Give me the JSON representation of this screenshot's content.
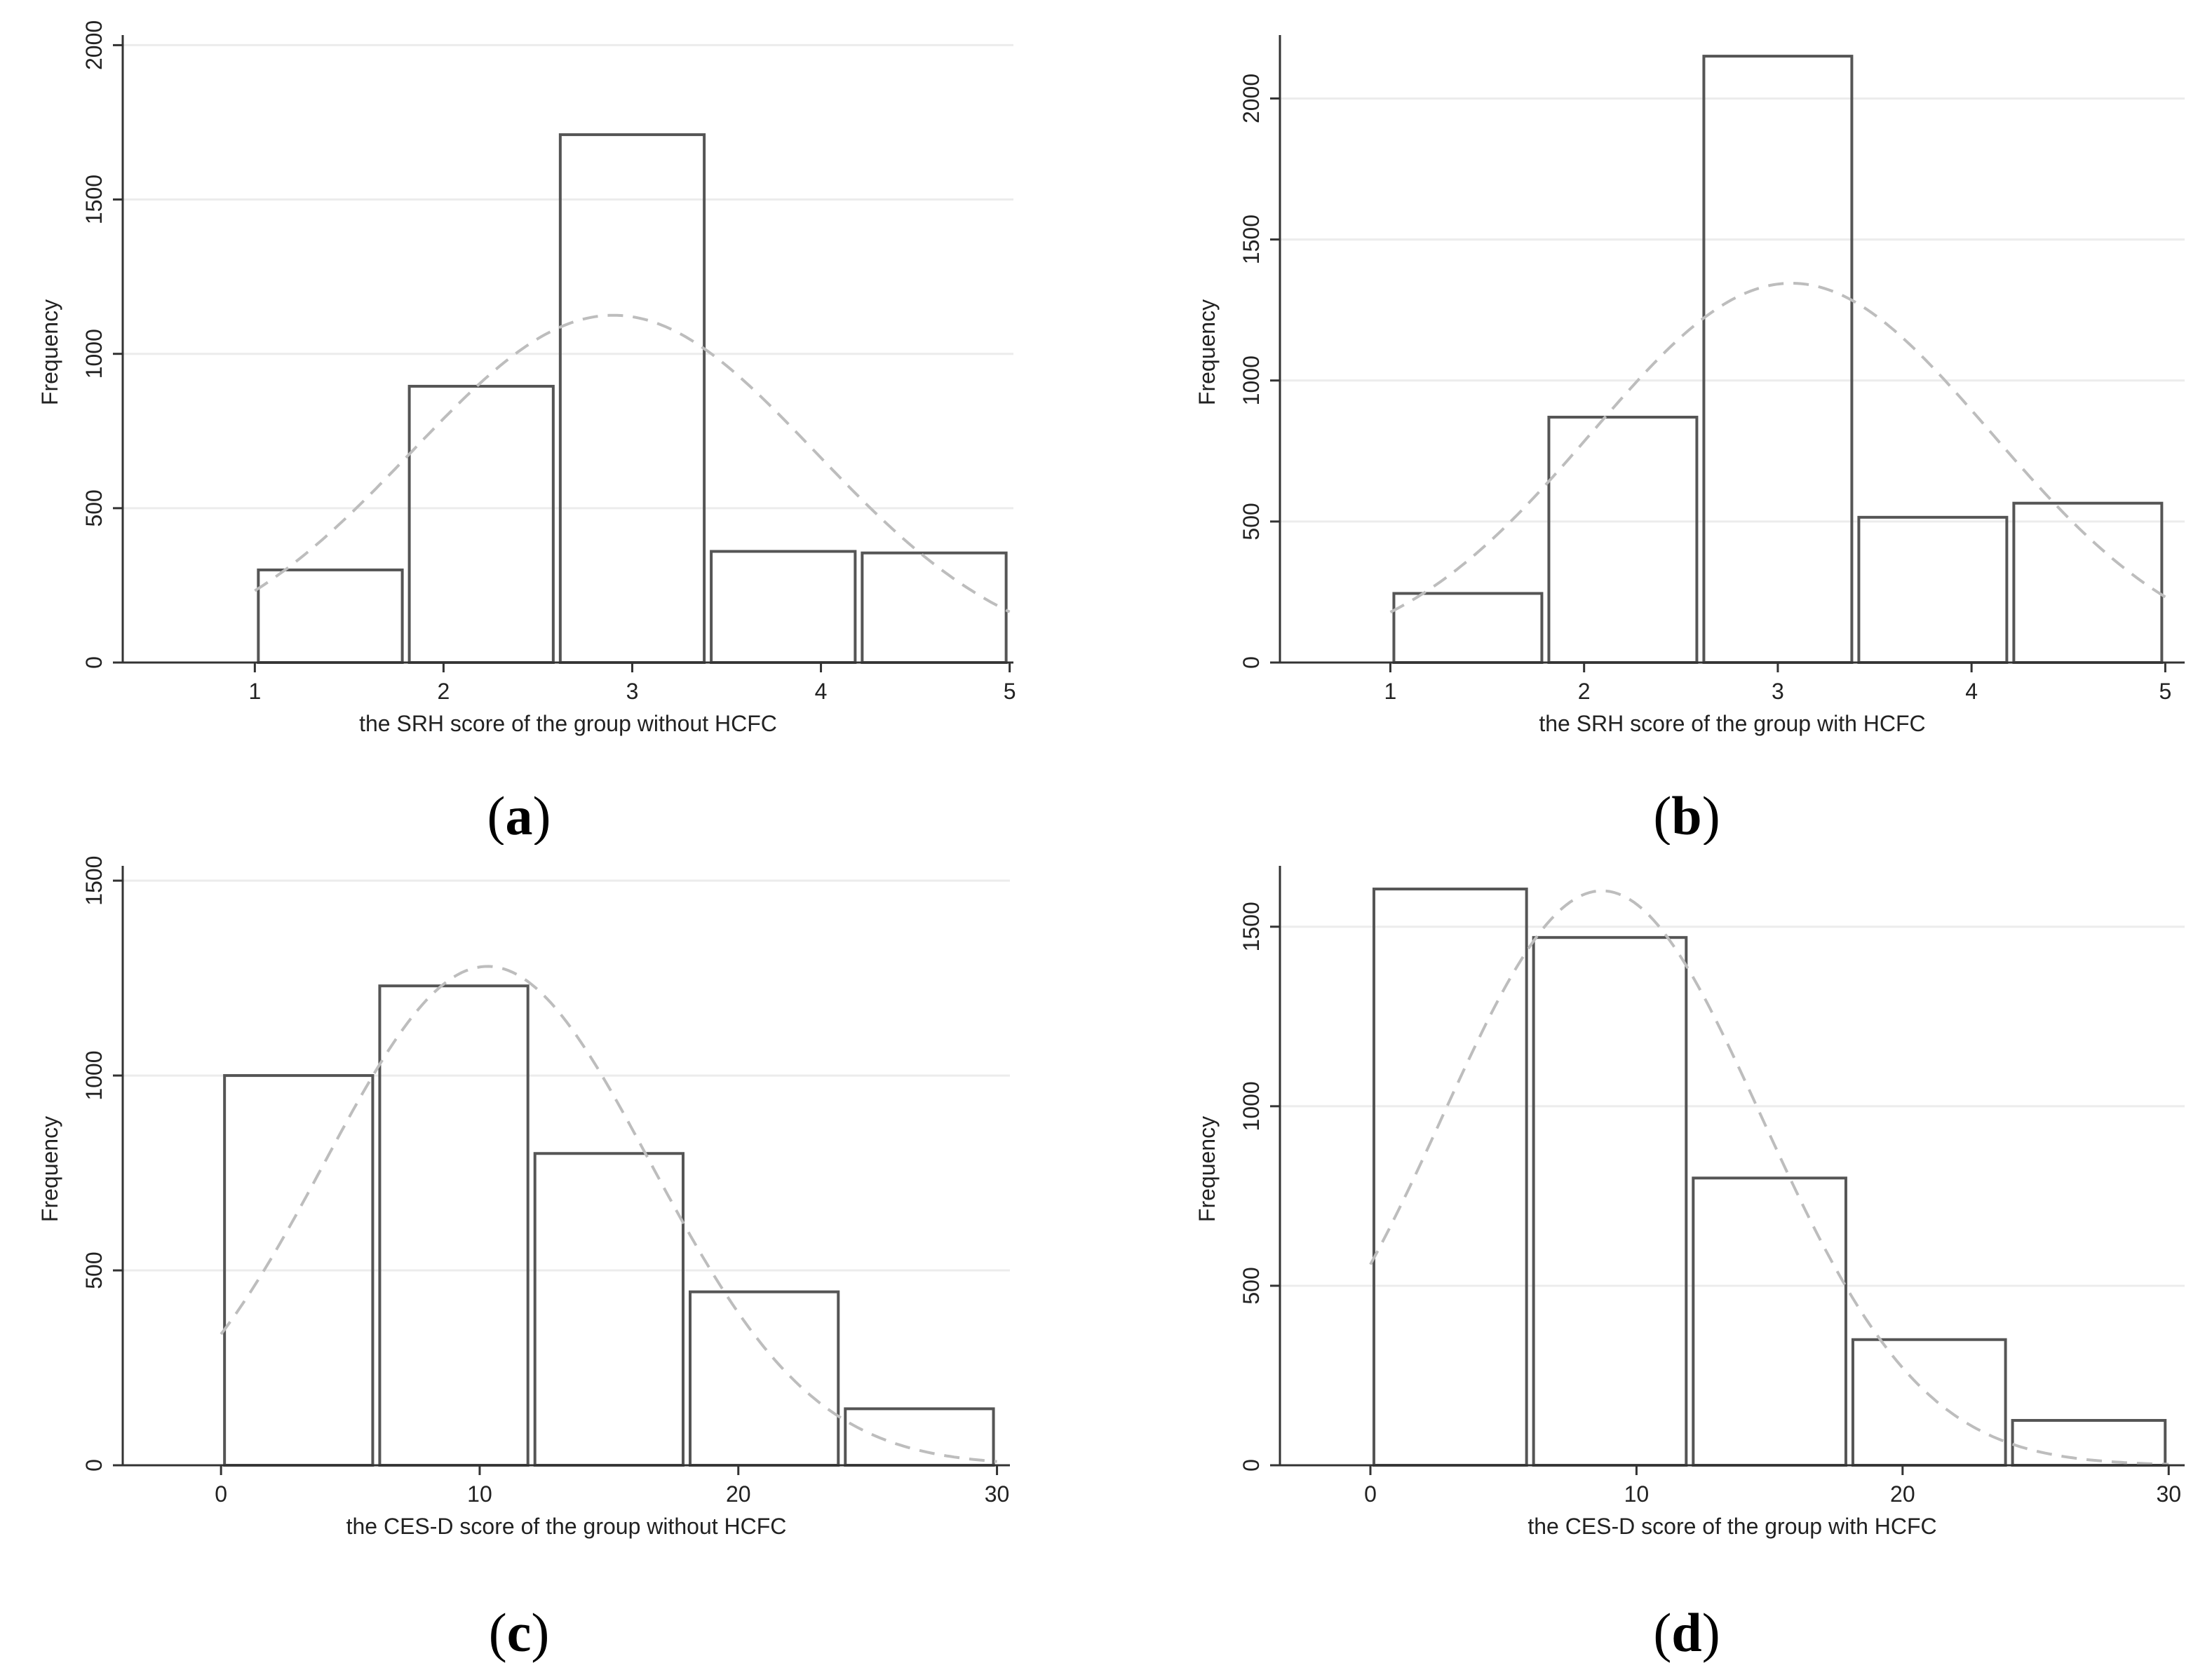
{
  "chart_data": [
    {
      "id": "a",
      "type": "bar",
      "title": "",
      "xlabel": "the SRH score of the group without HCFC",
      "ylabel": "Frequency",
      "xlim": [
        0.3,
        5.02
      ],
      "ylim": [
        0,
        2010
      ],
      "xticks": [
        1,
        2,
        3,
        4,
        5
      ],
      "yticks": [
        0,
        500,
        1000,
        1500,
        2000
      ],
      "bins": [
        {
          "start": 1.0,
          "end": 1.8,
          "value": 300
        },
        {
          "start": 1.8,
          "end": 2.6,
          "value": 895
        },
        {
          "start": 2.6,
          "end": 3.4,
          "value": 1710
        },
        {
          "start": 3.4,
          "end": 4.2,
          "value": 360
        },
        {
          "start": 4.2,
          "end": 5.0,
          "value": 355
        }
      ],
      "normal_curve": {
        "mean": 2.9,
        "sd": 1.07,
        "peak": 1125
      },
      "panel_label": "a"
    },
    {
      "id": "b",
      "type": "bar",
      "title": "",
      "xlabel": "the SRH score of the group with HCFC",
      "ylabel": "Frequency",
      "xlim": [
        0.43,
        5.1
      ],
      "ylim": [
        0,
        2200
      ],
      "xticks": [
        1,
        2,
        3,
        4,
        5
      ],
      "yticks": [
        0,
        500,
        1000,
        1500,
        2000
      ],
      "bins": [
        {
          "start": 1.0,
          "end": 1.8,
          "value": 245
        },
        {
          "start": 1.8,
          "end": 2.6,
          "value": 870
        },
        {
          "start": 2.6,
          "end": 3.4,
          "value": 2150
        },
        {
          "start": 3.4,
          "end": 4.2,
          "value": 515
        },
        {
          "start": 4.2,
          "end": 5.0,
          "value": 565
        }
      ],
      "normal_curve": {
        "mean": 3.07,
        "sd": 1.03,
        "peak": 1345
      },
      "panel_label": "b"
    },
    {
      "id": "c",
      "type": "bar",
      "title": "",
      "xlabel": "the CES-D score of the group without HCFC",
      "ylabel": "Frequency",
      "xlim": [
        -3.8,
        30.5
      ],
      "ylim": [
        0,
        1520
      ],
      "xticks": [
        0,
        10,
        20,
        30
      ],
      "yticks": [
        0,
        500,
        1000,
        1500
      ],
      "bins": [
        {
          "start": 0,
          "end": 6,
          "value": 1000
        },
        {
          "start": 6,
          "end": 12,
          "value": 1230
        },
        {
          "start": 12,
          "end": 18,
          "value": 800
        },
        {
          "start": 18,
          "end": 24,
          "value": 445
        },
        {
          "start": 24,
          "end": 30,
          "value": 145
        }
      ],
      "normal_curve": {
        "mean": 10.3,
        "sd": 6.3,
        "peak": 1280
      },
      "panel_label": "c"
    },
    {
      "id": "d",
      "type": "bar",
      "title": "",
      "xlabel": "the CES-D score of the group with HCFC",
      "ylabel": "Frequency",
      "xlim": [
        -3.4,
        30.6
      ],
      "ylim": [
        0,
        1650
      ],
      "xticks": [
        0,
        10,
        20,
        30
      ],
      "yticks": [
        0,
        500,
        1000,
        1500
      ],
      "bins": [
        {
          "start": 0,
          "end": 6,
          "value": 1605
        },
        {
          "start": 6,
          "end": 12,
          "value": 1470
        },
        {
          "start": 12,
          "end": 18,
          "value": 800
        },
        {
          "start": 18,
          "end": 24,
          "value": 350
        },
        {
          "start": 24,
          "end": 30,
          "value": 125
        }
      ],
      "normal_curve": {
        "mean": 8.7,
        "sd": 6.0,
        "peak": 1600
      },
      "panel_label": "d"
    }
  ],
  "colors": {
    "bar_stroke": "#555555",
    "curve": "#bdbdbd",
    "grid": "#ececec",
    "axis": "#333333",
    "panel_bg": "#ffffff",
    "outer_bg": "#f7f7f7"
  }
}
